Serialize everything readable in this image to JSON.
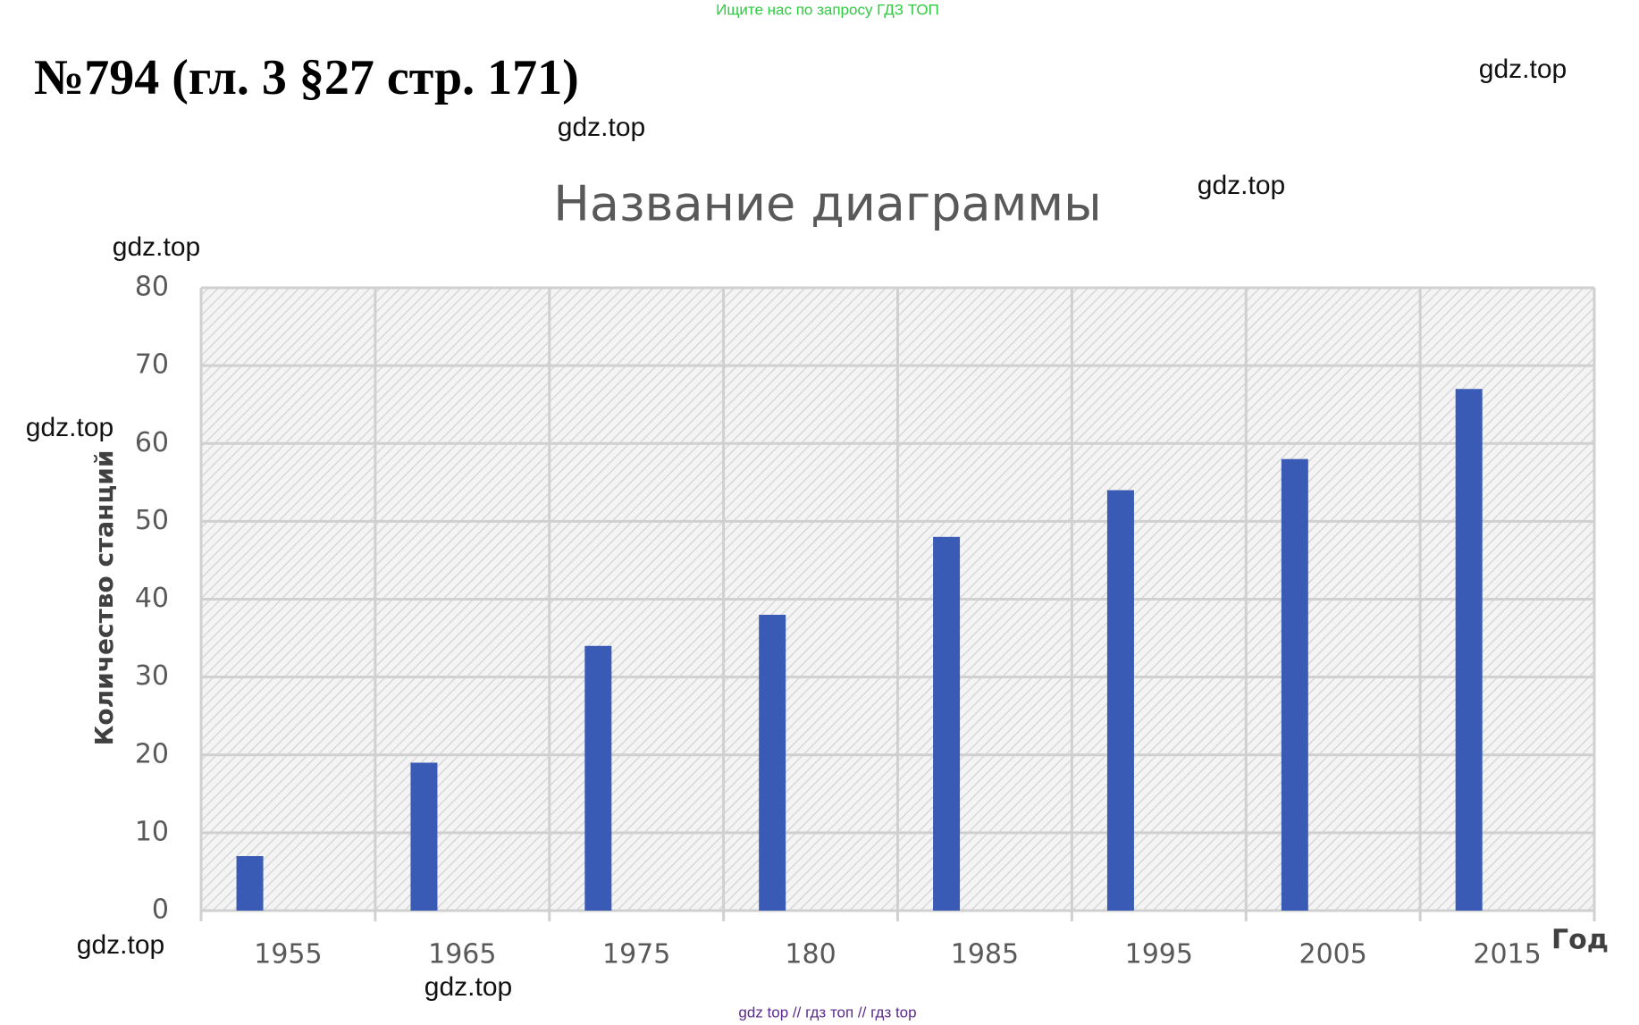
{
  "banner": "Ищите нас по запросу ГДЗ ТОП",
  "heading": "№794 (гл. 3 §27 стр. 171)",
  "watermarks": [
    "gdz.top",
    "gdz.top",
    "gdz.top",
    "gdz.top",
    "gdz.top",
    "gdz.top",
    "gdz.top"
  ],
  "footer": "gdz top  //  гдз топ  //  гдз top",
  "chart_data": {
    "type": "bar",
    "title": "Название диаграммы",
    "y_label": "Количество станций",
    "x_label": "Год",
    "categories": [
      "1955",
      "1965",
      "1975",
      "180",
      "1985",
      "1995",
      "2005",
      "2015"
    ],
    "values": [
      7,
      19,
      34,
      38,
      48,
      54,
      58,
      67
    ],
    "color": "#3a5bb5",
    "ylim": [
      0,
      80
    ],
    "yticks": [
      0,
      10,
      20,
      30,
      40,
      50,
      60,
      70,
      80
    ],
    "grid": true
  }
}
